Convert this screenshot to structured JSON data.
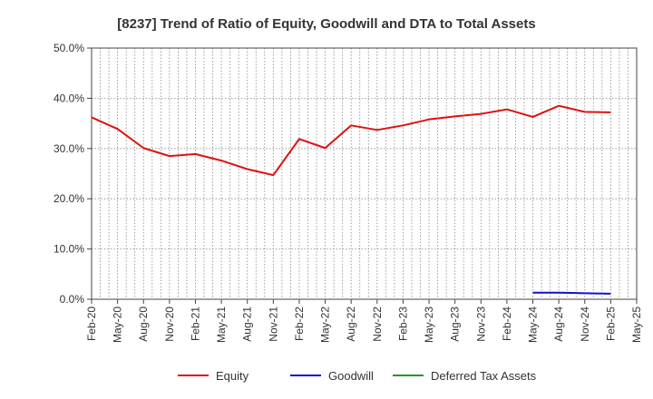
{
  "chart_data": {
    "type": "line",
    "title": "[8237]  Trend of Ratio of Equity, Goodwill and DTA to Total Assets",
    "xlabel": "",
    "ylabel": "",
    "ylim": [
      0,
      50
    ],
    "y_ticks": [
      "0.0%",
      "10.0%",
      "20.0%",
      "30.0%",
      "40.0%",
      "50.0%"
    ],
    "x_tick_labels": [
      "Feb-20",
      "May-20",
      "Aug-20",
      "Nov-20",
      "Feb-21",
      "May-21",
      "Aug-21",
      "Nov-21",
      "Feb-22",
      "May-22",
      "Aug-22",
      "Nov-22",
      "Feb-23",
      "May-23",
      "Aug-23",
      "Nov-23",
      "Feb-24",
      "May-24",
      "Aug-24",
      "Nov-24",
      "Feb-25",
      "May-25"
    ],
    "series": [
      {
        "name": "Equity",
        "color": "#dd1111",
        "values": [
          36.2,
          33.9,
          30.1,
          28.5,
          28.9,
          27.6,
          25.9,
          24.7,
          31.9,
          30.1,
          34.6,
          33.7,
          34.6,
          35.8,
          36.4,
          36.9,
          37.8,
          36.3,
          38.5,
          37.3,
          37.2,
          null
        ]
      },
      {
        "name": "Goodwill",
        "color": "#1111cc",
        "values": [
          null,
          null,
          null,
          null,
          null,
          null,
          null,
          null,
          null,
          null,
          null,
          null,
          null,
          null,
          null,
          null,
          null,
          1.3,
          1.3,
          1.2,
          1.1,
          null
        ]
      },
      {
        "name": "Deferred Tax Assets",
        "color": "#229922",
        "values": [
          null,
          null,
          null,
          null,
          null,
          null,
          null,
          null,
          null,
          null,
          null,
          null,
          null,
          null,
          null,
          null,
          null,
          null,
          null,
          null,
          null,
          null
        ]
      }
    ],
    "legend_position": "bottom",
    "grid": true
  }
}
